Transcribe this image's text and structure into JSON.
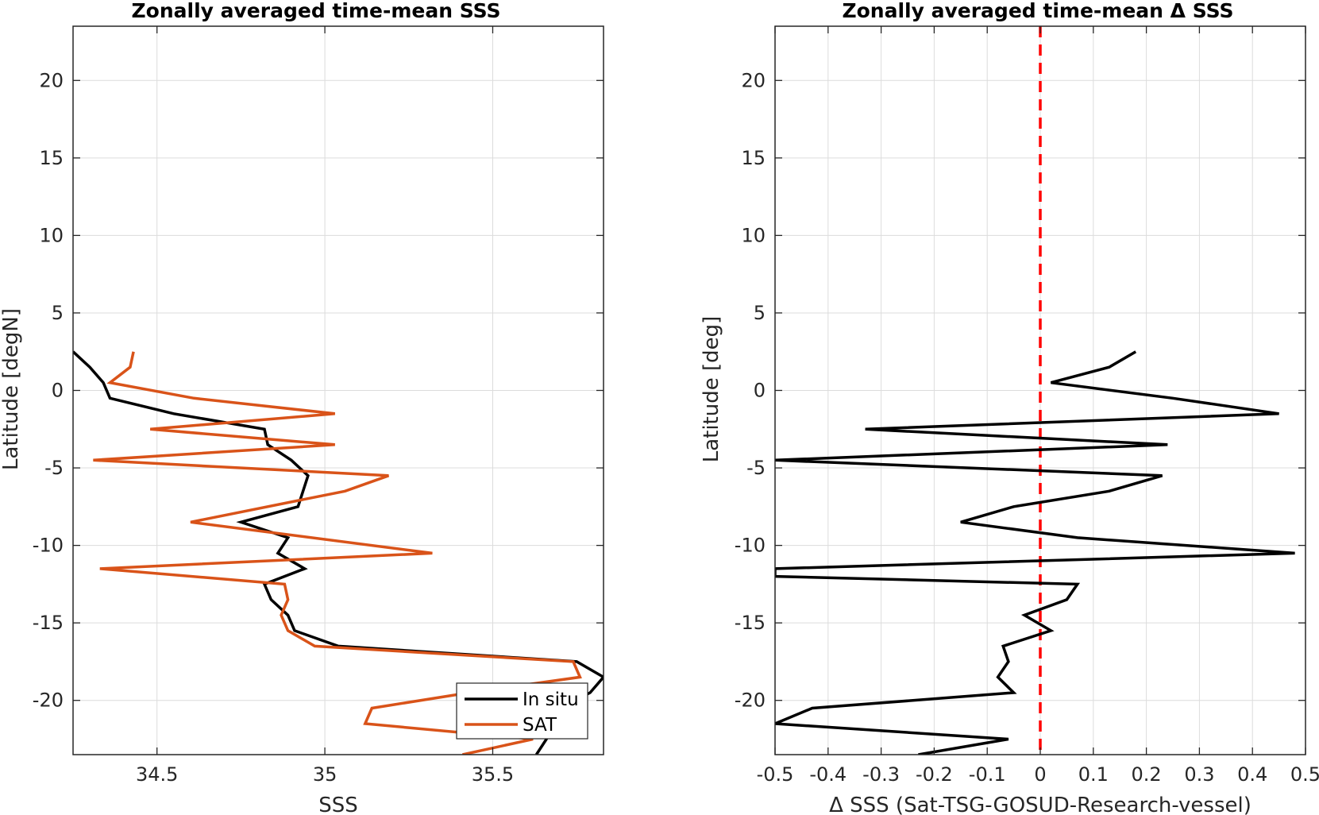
{
  "chart_data": [
    {
      "type": "line",
      "title": "Zonally averaged time-mean SSS",
      "xlabel": "SSS",
      "ylabel": "Latitude [degN]",
      "xlim": [
        34.25,
        35.83
      ],
      "ylim": [
        -23.5,
        23.5
      ],
      "xticks": [
        "34.5",
        "35",
        "35.5"
      ],
      "xtick_values": [
        34.5,
        35.0,
        35.5
      ],
      "yticks": [
        "20",
        "15",
        "10",
        "5",
        "0",
        "-5",
        "-10",
        "-15",
        "-20"
      ],
      "ytick_values": [
        20,
        15,
        10,
        5,
        0,
        -5,
        -10,
        -15,
        -20
      ],
      "grid": true,
      "legend": "bottom-right",
      "series": [
        {
          "name": "In situ",
          "color": "#000000",
          "points": [
            [
              34.25,
              2.5
            ],
            [
              34.3,
              1.5
            ],
            [
              34.34,
              0.5
            ],
            [
              34.36,
              -0.5
            ],
            [
              34.55,
              -1.5
            ],
            [
              34.82,
              -2.5
            ],
            [
              34.83,
              -3.5
            ],
            [
              34.9,
              -4.5
            ],
            [
              34.95,
              -5.5
            ],
            [
              34.92,
              -7.5
            ],
            [
              34.75,
              -8.5
            ],
            [
              34.89,
              -9.5
            ],
            [
              34.86,
              -10.5
            ],
            [
              34.94,
              -11.5
            ],
            [
              34.82,
              -12.5
            ],
            [
              34.84,
              -13.5
            ],
            [
              34.89,
              -14.5
            ],
            [
              34.91,
              -15.5
            ],
            [
              35.04,
              -16.5
            ],
            [
              35.75,
              -17.5
            ],
            [
              35.83,
              -18.5
            ],
            [
              35.79,
              -19.5
            ],
            [
              35.7,
              -20.5
            ],
            [
              35.65,
              -21.5
            ],
            [
              35.66,
              -22.5
            ],
            [
              35.63,
              -23.5
            ]
          ]
        },
        {
          "name": "SAT",
          "color": "#d95319",
          "points": [
            [
              34.43,
              2.5
            ],
            [
              34.42,
              1.5
            ],
            [
              34.36,
              0.5
            ],
            [
              34.61,
              -0.5
            ],
            [
              35.03,
              -1.5
            ],
            [
              34.48,
              -2.5
            ],
            [
              35.03,
              -3.5
            ],
            [
              34.31,
              -4.5
            ],
            [
              35.19,
              -5.5
            ],
            [
              35.06,
              -6.5
            ],
            [
              34.6,
              -8.5
            ],
            [
              35.32,
              -10.5
            ],
            [
              34.33,
              -11.5
            ],
            [
              34.88,
              -12.5
            ],
            [
              34.89,
              -13.5
            ],
            [
              34.87,
              -14.5
            ],
            [
              34.89,
              -15.5
            ],
            [
              34.97,
              -16.5
            ],
            [
              35.74,
              -17.5
            ],
            [
              35.76,
              -18.5
            ],
            [
              35.43,
              -19.5
            ],
            [
              35.14,
              -20.5
            ],
            [
              35.12,
              -21.5
            ],
            [
              35.62,
              -22.5
            ],
            [
              35.41,
              -23.5
            ]
          ]
        }
      ]
    },
    {
      "type": "line",
      "title": "Zonally averaged time-mean Δ SSS",
      "xlabel": "Δ SSS (Sat-TSG-GOSUD-Research-vessel)",
      "ylabel": "Latitude [deg]",
      "xlim": [
        -0.5,
        0.5
      ],
      "ylim": [
        -23.5,
        23.5
      ],
      "xticks": [
        "-0.5",
        "-0.4",
        "-0.3",
        "-0.2",
        "-0.1",
        "0",
        "0.1",
        "0.2",
        "0.3",
        "0.4",
        "0.5"
      ],
      "xtick_values": [
        -0.5,
        -0.4,
        -0.3,
        -0.2,
        -0.1,
        0,
        0.1,
        0.2,
        0.3,
        0.4,
        0.5
      ],
      "yticks": [
        "20",
        "15",
        "10",
        "5",
        "0",
        "-5",
        "-10",
        "-15",
        "-20"
      ],
      "ytick_values": [
        20,
        15,
        10,
        5,
        0,
        -5,
        -10,
        -15,
        -20
      ],
      "grid": true,
      "reference_line": {
        "x": 0,
        "color": "#ff0000",
        "style": "dashed"
      },
      "series": [
        {
          "color": "#000000",
          "points": [
            [
              0.18,
              2.5
            ],
            [
              0.13,
              1.5
            ],
            [
              0.02,
              0.5
            ],
            [
              0.25,
              -0.5
            ],
            [
              0.45,
              -1.5
            ],
            [
              -0.33,
              -2.5
            ],
            [
              0.24,
              -3.5
            ],
            [
              -0.5,
              -4.5
            ],
            [
              0.23,
              -5.5
            ],
            [
              0.13,
              -6.5
            ],
            [
              -0.05,
              -7.5
            ],
            [
              -0.15,
              -8.5
            ],
            [
              0.07,
              -9.5
            ],
            [
              0.48,
              -10.5
            ],
            [
              -0.5,
              -11.5
            ],
            [
              -0.5,
              -12.0
            ],
            [
              0.07,
              -12.5
            ],
            [
              0.05,
              -13.5
            ],
            [
              -0.03,
              -14.5
            ],
            [
              0.02,
              -15.5
            ],
            [
              -0.07,
              -16.5
            ],
            [
              -0.06,
              -17.5
            ],
            [
              -0.08,
              -18.5
            ],
            [
              -0.05,
              -19.5
            ],
            [
              -0.43,
              -20.5
            ],
            [
              -0.5,
              -21.5
            ],
            [
              -0.06,
              -22.5
            ],
            [
              -0.23,
              -23.5
            ]
          ]
        }
      ]
    }
  ]
}
